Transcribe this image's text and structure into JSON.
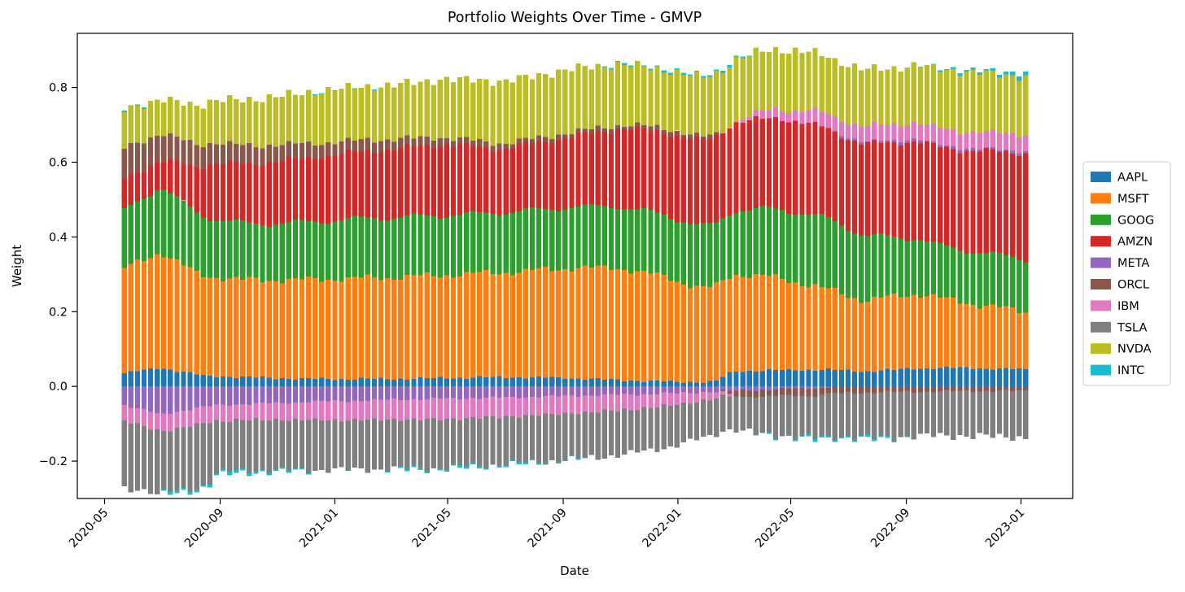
{
  "figure": {
    "title": "Portfolio Weights Over Time - GMVP",
    "xlabel": "Date",
    "ylabel": "Weight",
    "background": "#ffffff"
  },
  "chart_data": {
    "type": "bar",
    "stacked": true,
    "title": "Portfolio Weights Over Time - GMVP",
    "xlabel": "Date",
    "ylabel": "Weight",
    "grid": false,
    "legend_position": "outside-right",
    "ylim": [
      -0.3,
      0.945
    ],
    "y_ticks": [
      0.8,
      0.6,
      0.4,
      0.2,
      0.0,
      -0.2
    ],
    "y_tick_labels": [
      "0.8",
      "0.6",
      "0.4",
      "0.2",
      "0.0",
      "−0.2"
    ],
    "x_ticks": [
      {
        "date": "2020-05-01",
        "label": "2020-05"
      },
      {
        "date": "2020-09-01",
        "label": "2020-09"
      },
      {
        "date": "2021-01-01",
        "label": "2021-01"
      },
      {
        "date": "2021-05-01",
        "label": "2021-05"
      },
      {
        "date": "2021-09-01",
        "label": "2021-09"
      },
      {
        "date": "2022-01-01",
        "label": "2022-01"
      },
      {
        "date": "2022-05-01",
        "label": "2022-05"
      },
      {
        "date": "2022-09-01",
        "label": "2022-09"
      },
      {
        "date": "2023-01-01",
        "label": "2023-01"
      }
    ],
    "x_range_dates": [
      "2020-04-02",
      "2023-02-25"
    ],
    "bars": {
      "start_date": "2020-05-22",
      "interval_days": 7,
      "count": 138
    },
    "series": [
      {
        "name": "AAPL",
        "color": "#1f77b4",
        "jitter": 0.004,
        "anchors_t": [
          0,
          0.04,
          0.09,
          0.13,
          0.2,
          0.3,
          0.42,
          0.5,
          0.57,
          0.62,
          0.655,
          0.675,
          0.7,
          0.78,
          0.82,
          0.88,
          0.93,
          1
        ],
        "anchors_v": [
          0.035,
          0.05,
          0.028,
          0.025,
          0.02,
          0.02,
          0.025,
          0.022,
          0.015,
          0.012,
          0.012,
          0.04,
          0.042,
          0.045,
          0.04,
          0.048,
          0.05,
          0.045
        ]
      },
      {
        "name": "MSFT",
        "color": "#ff7f0e",
        "jitter": 0.012,
        "anchors_t": [
          0,
          0.04,
          0.08,
          0.13,
          0.2,
          0.27,
          0.35,
          0.42,
          0.5,
          0.55,
          0.6,
          0.64,
          0.675,
          0.72,
          0.78,
          0.82,
          0.88,
          0.93,
          1
        ],
        "anchors_v": [
          0.28,
          0.31,
          0.27,
          0.26,
          0.265,
          0.27,
          0.275,
          0.28,
          0.295,
          0.3,
          0.28,
          0.25,
          0.26,
          0.25,
          0.215,
          0.19,
          0.2,
          0.175,
          0.155
        ]
      },
      {
        "name": "GOOG",
        "color": "#2ca02c",
        "jitter": 0.009,
        "anchors_t": [
          0,
          0.04,
          0.1,
          0.15,
          0.27,
          0.42,
          0.55,
          0.64,
          0.675,
          0.73,
          0.78,
          0.84,
          0.9,
          1
        ],
        "anchors_v": [
          0.155,
          0.175,
          0.155,
          0.15,
          0.16,
          0.16,
          0.165,
          0.165,
          0.17,
          0.185,
          0.19,
          0.165,
          0.14,
          0.14
        ]
      },
      {
        "name": "AMZN",
        "color": "#d62728",
        "jitter": 0.01,
        "anchors_t": [
          0,
          0.04,
          0.1,
          0.16,
          0.27,
          0.35,
          0.42,
          0.5,
          0.57,
          0.64,
          0.675,
          0.73,
          0.8,
          0.88,
          0.94,
          1
        ],
        "anchors_v": [
          0.085,
          0.07,
          0.15,
          0.165,
          0.18,
          0.19,
          0.17,
          0.19,
          0.215,
          0.23,
          0.235,
          0.245,
          0.24,
          0.26,
          0.27,
          0.285
        ]
      },
      {
        "name": "META",
        "color": "#9467bd",
        "jitter": 0.004,
        "anchors_t": [
          0,
          0.04,
          0.1,
          0.2,
          0.3,
          0.42,
          0.55,
          0.62,
          0.675,
          0.72,
          0.77,
          0.8,
          0.85,
          1
        ],
        "anchors_v": [
          -0.05,
          -0.075,
          -0.05,
          -0.042,
          -0.035,
          -0.03,
          -0.022,
          -0.018,
          -0.012,
          -0.008,
          -0.004,
          0.004,
          0.006,
          0.005
        ]
      },
      {
        "name": "ORCL",
        "color": "#8c564b",
        "jitter": 0.004,
        "anchors_t": [
          0,
          0.05,
          0.1,
          0.16,
          0.27,
          0.35,
          0.45,
          0.55,
          0.62,
          0.655,
          0.675,
          0.75,
          0.85,
          0.95,
          1
        ],
        "anchors_v": [
          0.082,
          0.07,
          0.055,
          0.045,
          0.03,
          0.02,
          0.013,
          0.01,
          0.012,
          0.008,
          -0.015,
          -0.02,
          -0.015,
          -0.012,
          -0.012
        ]
      },
      {
        "name": "IBM",
        "color": "#e377c2",
        "jitter": 0.004,
        "anchors_t": [
          0,
          0.05,
          0.13,
          0.25,
          0.35,
          0.45,
          0.52,
          0.58,
          0.62,
          0.655,
          0.68,
          0.71,
          0.76,
          0.82,
          0.9,
          1
        ],
        "anchors_v": [
          -0.042,
          -0.046,
          -0.042,
          -0.052,
          -0.055,
          -0.05,
          -0.045,
          -0.038,
          -0.028,
          -0.02,
          0.005,
          0.02,
          0.035,
          0.042,
          0.045,
          0.045
        ]
      },
      {
        "name": "TSLA",
        "color": "#7f7f7f",
        "jitter": 0.012,
        "anchors_t": [
          0,
          0.03,
          0.06,
          0.1,
          0.16,
          0.25,
          0.35,
          0.45,
          0.55,
          0.6,
          0.645,
          0.675,
          0.72,
          0.78,
          0.84,
          0.9,
          1
        ],
        "anchors_v": [
          -0.15,
          -0.17,
          -0.145,
          -0.138,
          -0.135,
          -0.133,
          -0.13,
          -0.125,
          -0.12,
          -0.112,
          -0.1,
          -0.088,
          -0.105,
          -0.115,
          -0.122,
          -0.118,
          -0.125
        ]
      },
      {
        "name": "NVDA",
        "color": "#bcbd22",
        "jitter": 0.008,
        "anchors_t": [
          0,
          0.04,
          0.12,
          0.22,
          0.3,
          0.4,
          0.5,
          0.6,
          0.675,
          0.78,
          0.85,
          0.92,
          1
        ],
        "anchors_v": [
          0.105,
          0.09,
          0.12,
          0.14,
          0.145,
          0.165,
          0.17,
          0.155,
          0.165,
          0.155,
          0.15,
          0.16,
          0.155
        ]
      },
      {
        "name": "INTC",
        "color": "#17becf",
        "jitter": 0.003,
        "anchors_t": [
          0,
          0.025,
          0.05,
          0.1,
          0.18,
          0.25,
          0.33,
          0.42,
          0.5,
          0.56,
          0.62,
          0.675,
          0.72,
          0.78,
          0.85,
          0.9,
          0.95,
          1
        ],
        "anchors_v": [
          0.004,
          0.002,
          -0.006,
          -0.007,
          -0.004,
          0.002,
          -0.005,
          -0.004,
          -0.002,
          0.004,
          0.004,
          0.005,
          -0.003,
          -0.005,
          -0.004,
          0.003,
          0.006,
          0.01
        ]
      }
    ]
  }
}
